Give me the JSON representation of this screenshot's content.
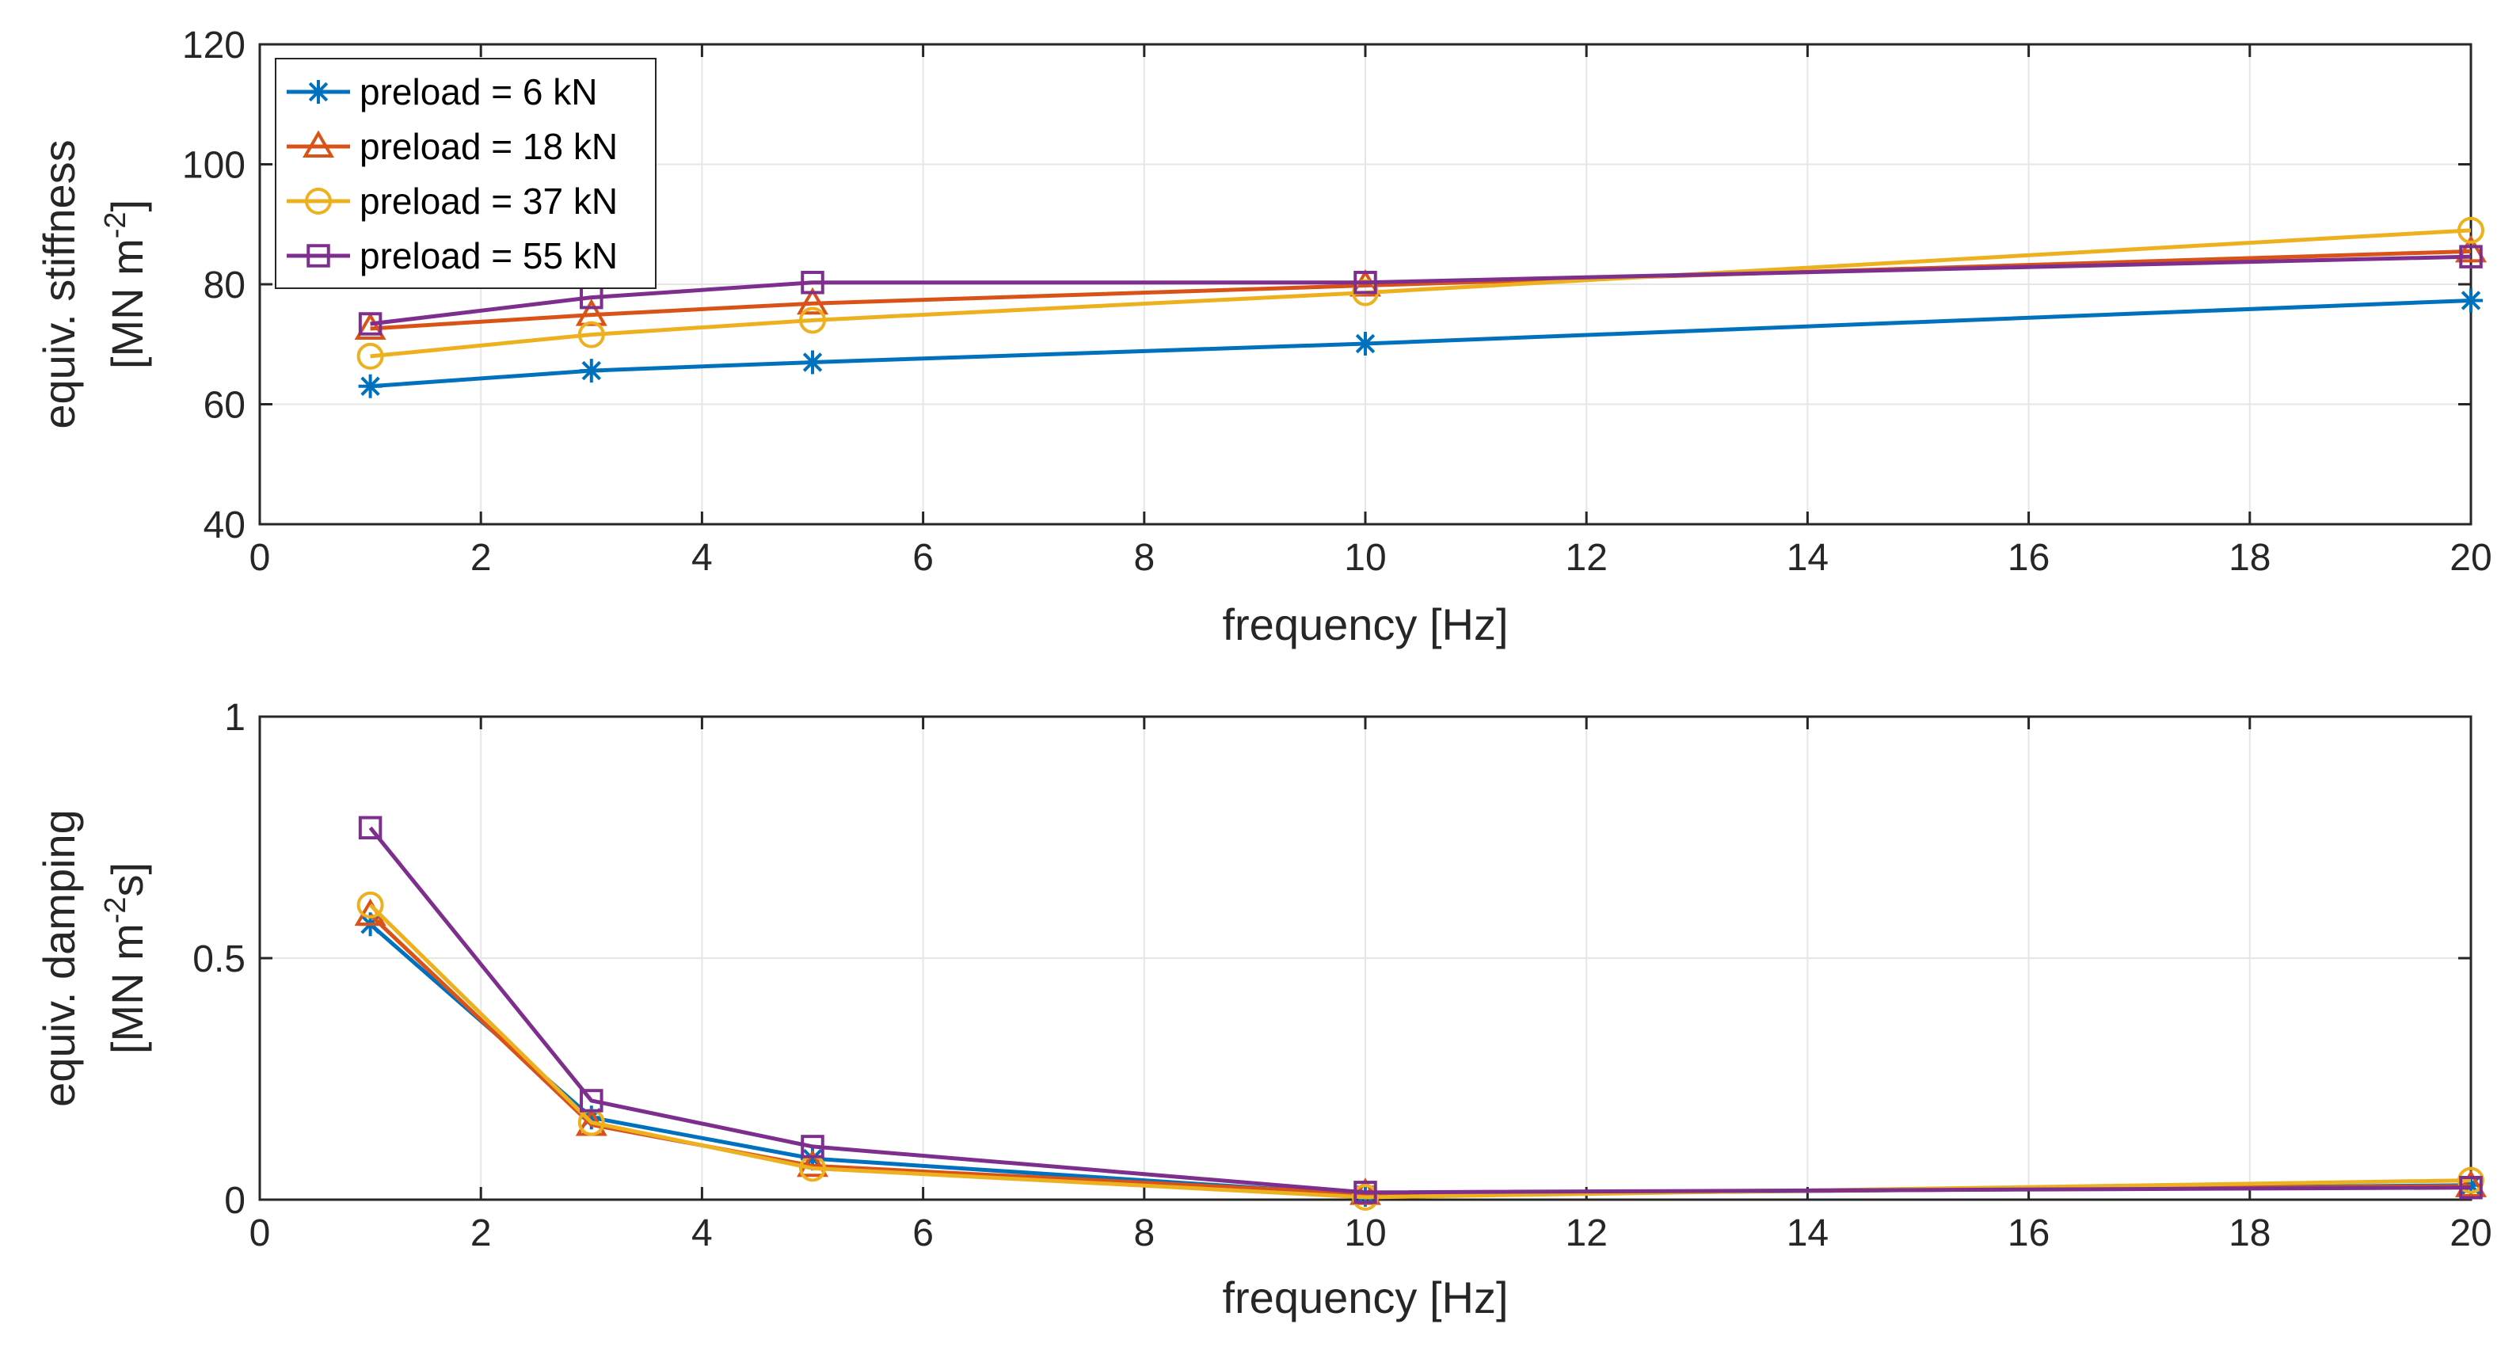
{
  "chart_data": [
    {
      "type": "line",
      "xlabel": "frequency [Hz]",
      "ylabel_line1": "equiv. stiffness",
      "ylabel_unit_prefix": "[MN m",
      "ylabel_unit_exp": "-2",
      "ylabel_unit_suffix": "]",
      "xlim": [
        0,
        20
      ],
      "ylim": [
        40,
        120
      ],
      "xticks": [
        0,
        2,
        4,
        6,
        8,
        10,
        12,
        14,
        16,
        18,
        20
      ],
      "yticks": [
        40,
        60,
        80,
        100,
        120
      ],
      "grid": true,
      "legend": "top-left",
      "x": [
        1,
        3,
        5,
        10,
        20
      ],
      "series": [
        {
          "name": "preload = 6 kN",
          "color": "#0072BD",
          "marker": "star",
          "values": [
            63.0,
            65.6,
            67.0,
            70.1,
            77.3
          ]
        },
        {
          "name": "preload = 18 kN",
          "color": "#D95319",
          "marker": "triangle",
          "values": [
            72.6,
            74.9,
            76.8,
            79.8,
            85.5
          ]
        },
        {
          "name": "preload = 37 kN",
          "color": "#EDB120",
          "marker": "circle",
          "values": [
            68.0,
            71.6,
            74.0,
            78.6,
            89.0
          ]
        },
        {
          "name": "preload = 55 kN",
          "color": "#7E2F8E",
          "marker": "square",
          "values": [
            73.4,
            77.8,
            80.3,
            80.3,
            84.6
          ]
        }
      ]
    },
    {
      "type": "line",
      "xlabel": "frequency [Hz]",
      "ylabel_line1": "equiv. damping",
      "ylabel_unit_prefix": "[MN m",
      "ylabel_unit_exp": "-2",
      "ylabel_unit_suffix": "s]",
      "xlim": [
        0,
        20
      ],
      "ylim": [
        0,
        1
      ],
      "xticks": [
        0,
        2,
        4,
        6,
        8,
        10,
        12,
        14,
        16,
        18,
        20
      ],
      "yticks": [
        0,
        0.5,
        1
      ],
      "grid": true,
      "x": [
        1,
        3,
        5,
        10,
        20
      ],
      "series": [
        {
          "name": "preload = 6 kN",
          "color": "#0072BD",
          "marker": "star",
          "values": [
            0.57,
            0.17,
            0.085,
            0.01,
            0.03
          ]
        },
        {
          "name": "preload = 18 kN",
          "color": "#D95319",
          "marker": "triangle",
          "values": [
            0.59,
            0.155,
            0.07,
            0.012,
            0.028
          ]
        },
        {
          "name": "preload = 37 kN",
          "color": "#EDB120",
          "marker": "circle",
          "values": [
            0.61,
            0.16,
            0.065,
            0.005,
            0.04
          ]
        },
        {
          "name": "preload = 55 kN",
          "color": "#7E2F8E",
          "marker": "square",
          "values": [
            0.77,
            0.205,
            0.11,
            0.015,
            0.025
          ]
        }
      ]
    }
  ]
}
